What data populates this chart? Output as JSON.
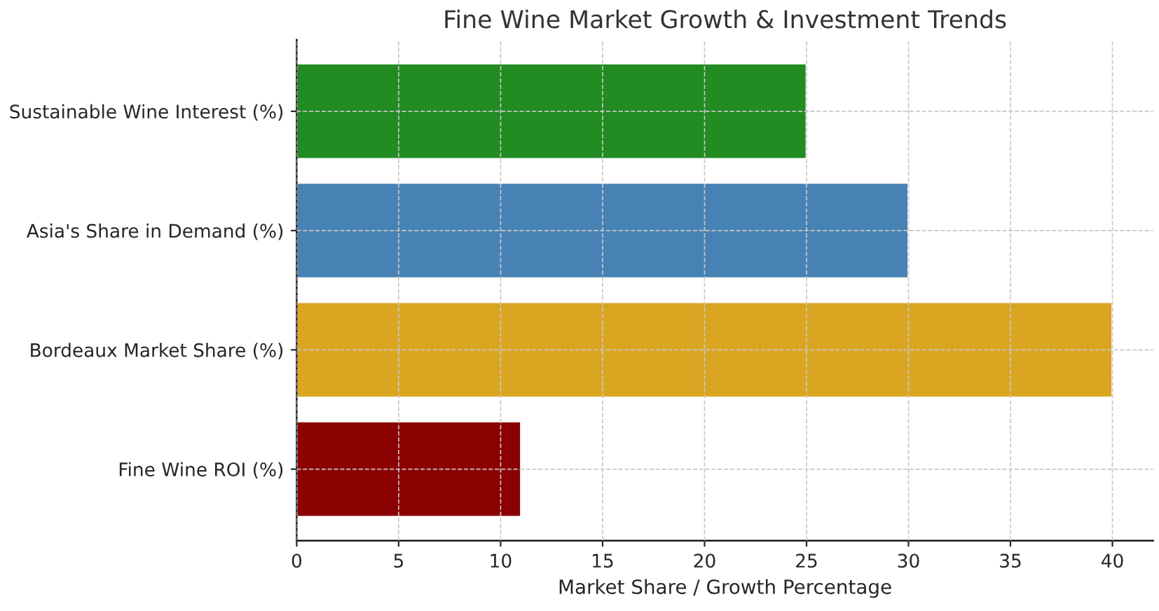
{
  "chart_data": {
    "type": "bar",
    "orientation": "horizontal",
    "title": "Fine Wine Market Growth & Investment Trends",
    "xlabel": "Market Share / Growth Percentage",
    "categories": [
      "Sustainable Wine Interest (%)",
      "Asia's Share in Demand (%)",
      "Bordeaux Market Share (%)",
      "Fine Wine ROI (%)"
    ],
    "values": [
      25,
      30,
      40,
      11
    ],
    "colors": [
      "#228b22",
      "#4682b4",
      "#daa520",
      "#8b0000"
    ],
    "xlim": [
      0,
      42
    ],
    "xticks": [
      0,
      5,
      10,
      15,
      20,
      25,
      30,
      35,
      40
    ],
    "grid": true
  }
}
